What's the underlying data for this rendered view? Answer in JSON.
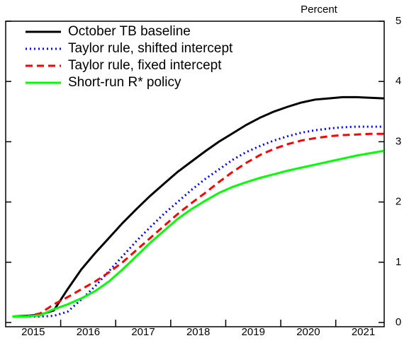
{
  "chart_data": {
    "type": "line",
    "unit_label": "Percent",
    "x": [
      2015.125,
      2015.375,
      2015.625,
      2015.875,
      2016.125,
      2016.375,
      2016.625,
      2016.875,
      2017.125,
      2017.375,
      2017.625,
      2017.875,
      2018.125,
      2018.375,
      2018.625,
      2018.875,
      2019.125,
      2019.375,
      2019.625,
      2019.875,
      2020.125,
      2020.375,
      2020.625,
      2020.875,
      2021.125,
      2021.375,
      2021.625,
      2021.875
    ],
    "series": [
      {
        "name": "October TB baseline",
        "color": "#000000",
        "dash": "solid",
        "values": [
          0.1,
          0.11,
          0.13,
          0.2,
          0.55,
          0.88,
          1.15,
          1.4,
          1.65,
          1.88,
          2.1,
          2.3,
          2.5,
          2.67,
          2.84,
          3.0,
          3.14,
          3.28,
          3.4,
          3.5,
          3.58,
          3.65,
          3.7,
          3.72,
          3.74,
          3.74,
          3.73,
          3.72
        ]
      },
      {
        "name": "Taylor rule, shifted intercept",
        "color": "#0000ff",
        "dash": "dotted",
        "values": [
          0.1,
          0.1,
          0.1,
          0.11,
          0.18,
          0.38,
          0.6,
          0.85,
          1.1,
          1.35,
          1.58,
          1.8,
          2.0,
          2.2,
          2.38,
          2.54,
          2.7,
          2.83,
          2.93,
          3.02,
          3.09,
          3.15,
          3.19,
          3.22,
          3.24,
          3.25,
          3.25,
          3.25
        ]
      },
      {
        "name": "Taylor rule, fixed intercept",
        "color": "#ff0000",
        "dash": "dashed",
        "values": [
          0.1,
          0.1,
          0.15,
          0.3,
          0.42,
          0.55,
          0.68,
          0.83,
          1.0,
          1.2,
          1.4,
          1.6,
          1.8,
          1.98,
          2.15,
          2.33,
          2.5,
          2.65,
          2.78,
          2.88,
          2.96,
          3.02,
          3.06,
          3.09,
          3.11,
          3.12,
          3.13,
          3.13
        ]
      },
      {
        "name": "Short-run R* policy",
        "color": "#00ff00",
        "dash": "solid",
        "values": [
          0.1,
          0.1,
          0.12,
          0.22,
          0.3,
          0.4,
          0.52,
          0.68,
          0.88,
          1.1,
          1.32,
          1.52,
          1.72,
          1.88,
          2.02,
          2.15,
          2.25,
          2.33,
          2.4,
          2.46,
          2.52,
          2.57,
          2.62,
          2.67,
          2.72,
          2.77,
          2.81,
          2.85
        ]
      }
    ],
    "xlim": [
      2015.0,
      2021.88
    ],
    "xticks": [
      {
        "value": 2015.5,
        "label": "2015"
      },
      {
        "value": 2016.5,
        "label": "2016"
      },
      {
        "value": 2017.5,
        "label": "2017"
      },
      {
        "value": 2018.5,
        "label": "2018"
      },
      {
        "value": 2019.5,
        "label": "2019"
      },
      {
        "value": 2020.5,
        "label": "2020"
      },
      {
        "value": 2021.5,
        "label": "2021"
      }
    ],
    "ylim": [
      0,
      5
    ],
    "yticks": [
      0,
      1,
      2,
      3,
      4,
      5
    ],
    "legend": "upper left",
    "grid": false
  }
}
